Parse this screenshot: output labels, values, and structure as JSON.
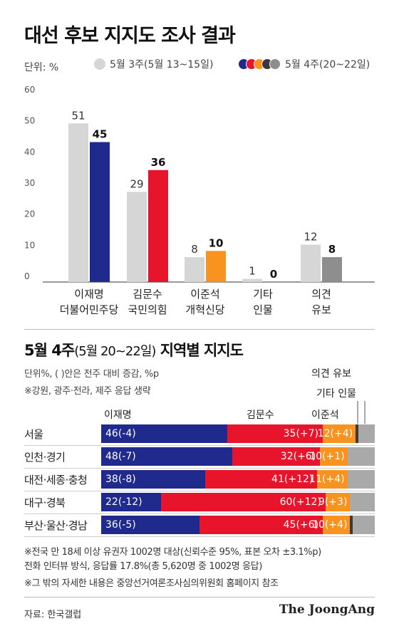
{
  "title": "대선 후보 지지도 조사 결과",
  "unit": "단위: %",
  "legend": {
    "week3": "5월 3주(5월 13~15일)",
    "week4": "5월 4주(20~22일)"
  },
  "colors": {
    "lee": "#1f2a8c",
    "kim": "#e8142c",
    "jun": "#f7931e",
    "etc": "#3a3a3a",
    "undecided": "#8e8e8e",
    "week3": "#d6d6d6",
    "undecided_light": "#a9a9a9"
  },
  "chart_data": [
    {
      "type": "bar",
      "title": "대선 후보 지지도 조사 결과",
      "ylabel": "단위: %",
      "ylim": [
        0,
        60
      ],
      "yticks": [
        0,
        10,
        20,
        30,
        40,
        50,
        60
      ],
      "categories": [
        {
          "line1": "이재명",
          "line2": "더불어민주당"
        },
        {
          "line1": "김문수",
          "line2": "국민의힘"
        },
        {
          "line1": "이준석",
          "line2": "개혁신당"
        },
        {
          "line1": "기타",
          "line2": "인물"
        },
        {
          "line1": "의견",
          "line2": "유보"
        }
      ],
      "series": [
        {
          "name": "5월 3주(5월 13~15일)",
          "values": [
            51,
            29,
            8,
            1,
            12
          ]
        },
        {
          "name": "5월 4주(20~22일)",
          "values": [
            45,
            36,
            10,
            0,
            8
          ]
        }
      ],
      "grid": false,
      "legend_position": "top"
    },
    {
      "type": "bar",
      "stacked": true,
      "orientation": "horizontal",
      "title": "5월 4주(5월 20~22일) 지역별 지지도",
      "columns": [
        "이재명",
        "김문수",
        "이준석",
        "기타 인물",
        "의견 유보"
      ],
      "regions": [
        {
          "name": "서울",
          "lee": 46,
          "lee_change": "(-4)",
          "kim": 35,
          "kim_change": "(+7)",
          "jun": 12,
          "jun_change": "(+4)",
          "etc": 1,
          "undecided": 6
        },
        {
          "name": "인천·경기",
          "lee": 48,
          "lee_change": "(-7)",
          "kim": 32,
          "kim_change": "(+6)",
          "jun": 10,
          "jun_change": "(+1)",
          "etc": 0,
          "undecided": 10
        },
        {
          "name": "대전·세종·충청",
          "lee": 38,
          "lee_change": "(-8)",
          "kim": 41,
          "kim_change": "(+12)",
          "jun": 11,
          "jun_change": "(+4)",
          "etc": 0,
          "undecided": 10
        },
        {
          "name": "대구·경북",
          "lee": 22,
          "lee_change": "(-12)",
          "kim": 60,
          "kim_change": "(+12)",
          "jun": 9,
          "jun_change": "(+3)",
          "etc": 0,
          "undecided": 9
        },
        {
          "name": "부산·울산·경남",
          "lee": 36,
          "lee_change": "(-5)",
          "kim": 45,
          "kim_change": "(+6)",
          "jun": 10,
          "jun_change": "(+4)",
          "etc": 1,
          "undecided": 8
        }
      ]
    }
  ],
  "section2": {
    "title_bold": "5월 4주",
    "title_thin": "(5월 20~22일)",
    "title_bold2": " 지역별 지지도",
    "note1": "단위%, ( )안은 전주 대비 증감, %p",
    "note2": "※강원, 광주·전라, 제주 응답 생략",
    "label_lee": "이재명",
    "label_kim": "김문수",
    "label_jun": "이준석",
    "label_etc": "기타 인물",
    "label_undecided": "의견 유보"
  },
  "footnotes": [
    "※전국 만 18세 이상 유권자 1002명 대상(신뢰수준 95%, 표본 오차 ±3.1%p)",
    "전화 인터뷰 방식, 응답률 17.8%(총 5,620명 중 1002명 응답)",
    "※그 밖의 자세한 내용은 중앙선거여론조사심의위원회 홈페이지 참조"
  ],
  "source": "자료: 한국갤럽",
  "brand": "The JoongAng"
}
